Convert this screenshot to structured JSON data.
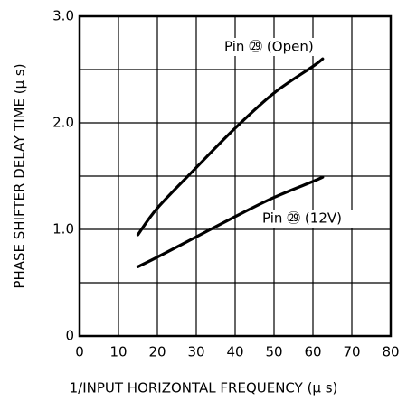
{
  "chart_data": {
    "type": "line",
    "xlabel": "1/INPUT HORIZONTAL FREQUENCY (μ s)",
    "ylabel": "PHASE SHIFTER DELAY TIME (μ s)",
    "xlim": [
      0,
      80
    ],
    "xticks": [
      0,
      10,
      20,
      30,
      40,
      50,
      60,
      70,
      80
    ],
    "ylim": [
      0,
      3
    ],
    "yticks": [
      0,
      {
        "value": 1,
        "label": "1.0"
      },
      {
        "value": 2,
        "label": "2.0"
      },
      {
        "value": 3,
        "label": "3.0"
      }
    ],
    "yminor": [
      0.5,
      1.5,
      2.5
    ],
    "grid": true,
    "series": [
      {
        "name": "Pin ㉙ (Open)",
        "color": "#000000",
        "x": [
          15,
          20,
          30,
          40,
          50,
          60,
          62.5
        ],
        "values": [
          0.95,
          1.2,
          1.58,
          1.95,
          2.28,
          2.53,
          2.6
        ]
      },
      {
        "name": "Pin ㉙ (12V)",
        "color": "#000000",
        "x": [
          15,
          20,
          30,
          40,
          50,
          60,
          62.5
        ],
        "values": [
          0.65,
          0.74,
          0.93,
          1.12,
          1.3,
          1.45,
          1.49
        ]
      }
    ]
  }
}
